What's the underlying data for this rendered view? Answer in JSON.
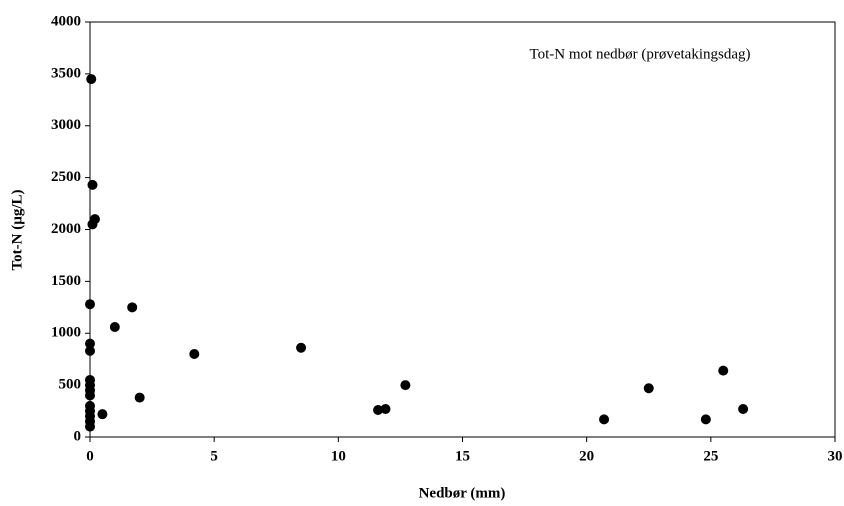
{
  "chart_data": {
    "type": "scatter",
    "annotation": "Tot-N mot nedbør (prøvetakingsdag)",
    "x_label": "Nedbør (mm)",
    "y_label": "Tot-N (µg/L)",
    "color": "#000000",
    "xlim": [
      0,
      30
    ],
    "xticks": [
      0,
      5,
      10,
      15,
      20,
      25,
      30
    ],
    "ylim": [
      0,
      4000
    ],
    "yticks": [
      0,
      500,
      1000,
      1500,
      2000,
      2500,
      3000,
      3500,
      4000
    ],
    "x": [
      0.05,
      0.1,
      0.1,
      0.2,
      0,
      0,
      0,
      0,
      0,
      0,
      0,
      0,
      0,
      0,
      0,
      0,
      0.5,
      1.0,
      1.7,
      2.0,
      4.2,
      8.5,
      11.6,
      11.9,
      12.7,
      20.7,
      22.5,
      24.8,
      25.5,
      26.3
    ],
    "values": [
      3450,
      2430,
      2050,
      2100,
      1280,
      900,
      830,
      550,
      500,
      450,
      400,
      300,
      250,
      200,
      150,
      100,
      220,
      1060,
      1250,
      380,
      800,
      860,
      260,
      270,
      500,
      170,
      470,
      170,
      640,
      270
    ]
  }
}
